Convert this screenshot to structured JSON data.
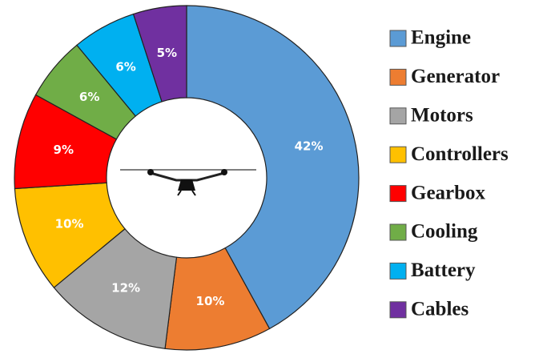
{
  "chart_data": {
    "type": "donut",
    "categories": [
      "Engine",
      "Generator",
      "Motors",
      "Controllers",
      "Gearbox",
      "Cooling",
      "Battery",
      "Cables"
    ],
    "values": [
      42,
      10,
      12,
      10,
      9,
      6,
      6,
      5
    ],
    "value_labels": [
      "42%",
      "10%",
      "12%",
      "10%",
      "9%",
      "6%",
      "6%",
      "5%"
    ],
    "colors": [
      "#5b9bd5",
      "#ed7d31",
      "#a5a5a5",
      "#ffc000",
      "#ff0000",
      "#70ad47",
      "#00b0f0",
      "#7030a0"
    ],
    "legend": "right"
  }
}
